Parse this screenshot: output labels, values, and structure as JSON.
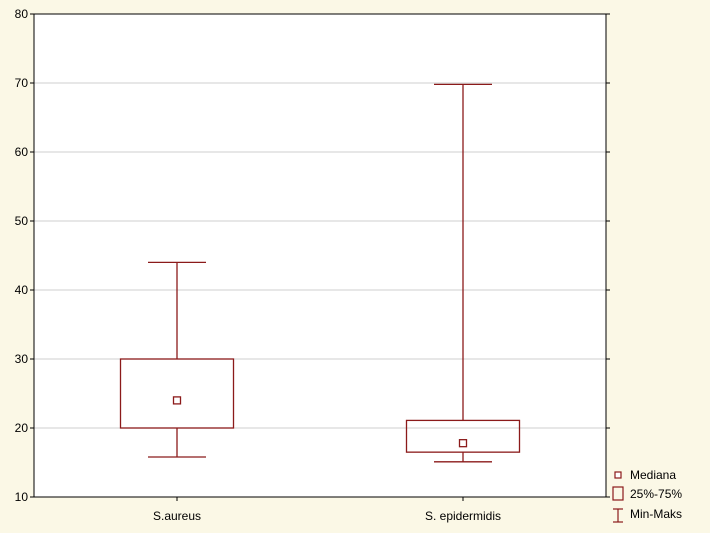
{
  "chart_data": {
    "type": "boxplot",
    "title": "",
    "xlabel": "",
    "ylabel": "",
    "ylim": [
      10,
      80
    ],
    "yticks": [
      10,
      20,
      30,
      40,
      50,
      60,
      70,
      80
    ],
    "grid": true,
    "categories": [
      "S.aureus",
      "S. epidermidis"
    ],
    "boxes": [
      {
        "category": "S.aureus",
        "min": 15.8,
        "q1": 20.0,
        "median": 24.0,
        "q3": 30.0,
        "max": 44.0
      },
      {
        "category": "S. epidermidis",
        "min": 15.1,
        "q1": 16.5,
        "median": 17.8,
        "q3": 21.1,
        "max": 69.8
      }
    ],
    "legend": {
      "position": "bottom-right",
      "items": [
        "Mediana",
        "25%-75%",
        "Min-Maks"
      ]
    },
    "colors": {
      "box": "#8b1a1a",
      "grid": "#cfcfcf",
      "plot_bg": "#ffffff",
      "page_bg": "#fbf8e6"
    }
  }
}
